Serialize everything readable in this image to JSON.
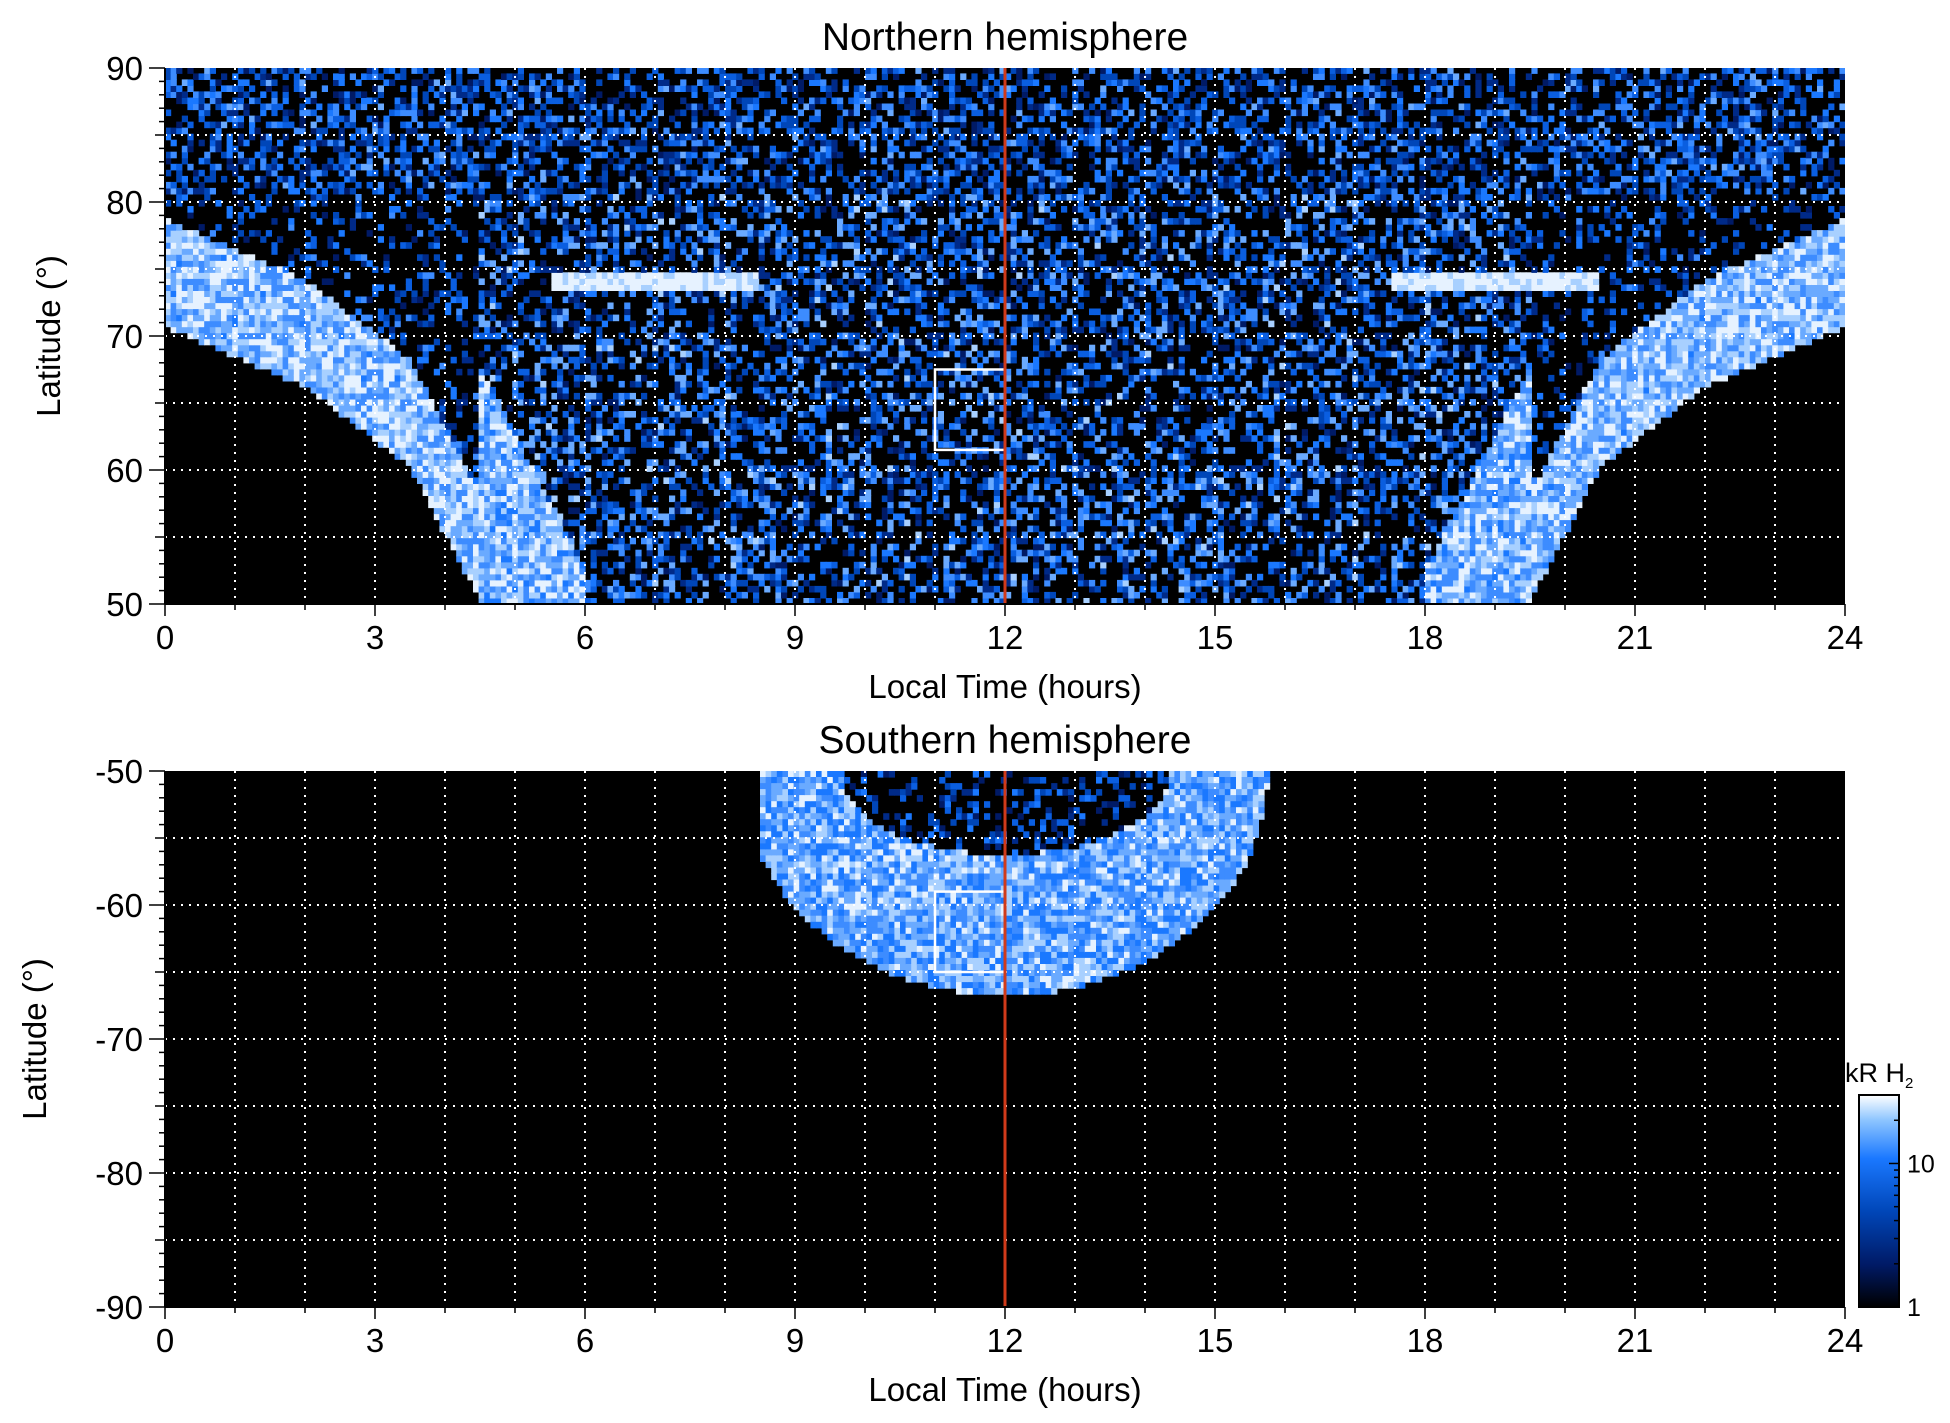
{
  "chart_data": [
    {
      "type": "heatmap",
      "title": "Northern hemisphere",
      "xlabel": "Local Time (hours)",
      "ylabel": "Latitude (°)",
      "xlim": [
        0,
        24
      ],
      "ylim": [
        50,
        90
      ],
      "x_ticks": [
        "0",
        "3",
        "6",
        "9",
        "12",
        "15",
        "18",
        "21",
        "24"
      ],
      "y_ticks": [
        "50",
        "60",
        "70",
        "80",
        "90"
      ],
      "grid": true,
      "vertical_line": {
        "x": 12,
        "color": "#d03a1a"
      },
      "highlight_box": {
        "x": [
          11,
          12
        ],
        "y": [
          61.5,
          67.5
        ],
        "color": "#ffffff"
      },
      "auroral_oval": {
        "center_x": 12,
        "band_width_deg": 8,
        "boundary_points": [
          {
            "x": 0,
            "lat": 70.5
          },
          {
            "x": 2,
            "lat": 66
          },
          {
            "x": 3.5,
            "lat": 60
          },
          {
            "x": 4.5,
            "lat": 50
          },
          {
            "x": 19.5,
            "lat": 50
          },
          {
            "x": 20.5,
            "lat": 60
          },
          {
            "x": 22,
            "lat": 66
          },
          {
            "x": 24,
            "lat": 70.5
          }
        ],
        "noon_arc_lat": 74
      },
      "polar_cap_lat": 80.5
    },
    {
      "type": "heatmap",
      "title": "Southern hemisphere",
      "xlabel": "Local Time (hours)",
      "ylabel": "Latitude (°)",
      "xlim": [
        0,
        24
      ],
      "ylim": [
        -90,
        -50
      ],
      "x_ticks": [
        "0",
        "3",
        "6",
        "9",
        "12",
        "15",
        "18",
        "21",
        "24"
      ],
      "y_ticks": [
        "-50",
        "-60",
        "-70",
        "-80",
        "-90"
      ],
      "grid": true,
      "vertical_line": {
        "x": 12,
        "color": "#d03a1a"
      },
      "highlight_box": {
        "x": [
          11,
          12
        ],
        "y": [
          -65,
          -59
        ],
        "color": "#ffffff"
      },
      "emission_region": {
        "x_range": [
          8.5,
          16
        ],
        "lat_range": [
          -66.5,
          -50
        ],
        "inner_dark_lat": -56
      }
    }
  ],
  "colorbar": {
    "title": "kR H",
    "title_subscript": "2",
    "scale": "log",
    "range": [
      1,
      30
    ],
    "tick_labels": [
      "1",
      "10"
    ],
    "colors": [
      "#000000",
      "#001a66",
      "#0046b8",
      "#1a78ff",
      "#8cc4ff",
      "#ffffff"
    ]
  }
}
